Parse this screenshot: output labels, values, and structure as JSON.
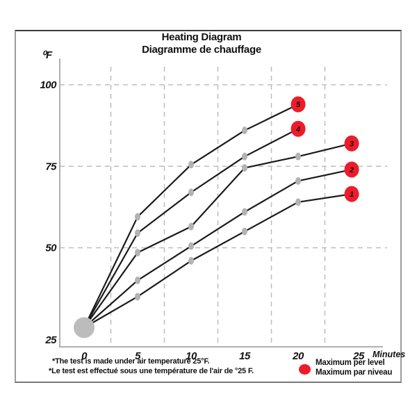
{
  "chart_data": {
    "type": "line",
    "title": "Heating Diagram",
    "subtitle": "Diagramme de chauffage",
    "ylabel": "⁰F",
    "xlabel": "Minutes",
    "x_ticks": [
      "0",
      "5",
      "10",
      "15",
      "20",
      "25"
    ],
    "y_ticks": [
      "25",
      "50",
      "75",
      "100"
    ],
    "xlim": [
      0,
      28
    ],
    "ylim": [
      25,
      108
    ],
    "grid": {
      "style": "dashed",
      "h_lines_at": [
        50,
        75,
        100
      ],
      "v_lines_at": [
        2.5,
        7.5,
        12.5,
        17.5,
        22.5
      ]
    },
    "origin_point": {
      "x": 0,
      "y": 25.5,
      "note": "common start point, large gray dot"
    },
    "series": [
      {
        "name": "1",
        "x": [
          0,
          5,
          10,
          15,
          20,
          25
        ],
        "y": [
          25.5,
          35,
          46,
          55,
          64,
          66.5
        ],
        "max": {
          "x": 25,
          "y": 66.5,
          "label": "1"
        }
      },
      {
        "name": "2",
        "x": [
          0,
          5,
          10,
          15,
          20,
          25
        ],
        "y": [
          25.5,
          40,
          50.5,
          61,
          70.5,
          74
        ],
        "max": {
          "x": 25,
          "y": 74,
          "label": "2"
        }
      },
      {
        "name": "3",
        "x": [
          0,
          5,
          10,
          15,
          20,
          25
        ],
        "y": [
          25.5,
          48.5,
          56.5,
          74.5,
          78,
          82
        ],
        "max": {
          "x": 25,
          "y": 82,
          "label": "3"
        }
      },
      {
        "name": "4",
        "x": [
          0,
          5,
          10,
          15,
          20
        ],
        "y": [
          25.5,
          54.5,
          67,
          78,
          86.5
        ],
        "max": {
          "x": 20,
          "y": 86.5,
          "label": "4"
        }
      },
      {
        "name": "5",
        "x": [
          0,
          5,
          10,
          15,
          20
        ],
        "y": [
          25.5,
          59.5,
          75.5,
          86,
          94
        ],
        "max": {
          "x": 20,
          "y": 94,
          "label": "5"
        }
      }
    ],
    "legend": {
      "position": "bottom-right",
      "labels": [
        "Maximum per level",
        "Maximum par niveau"
      ]
    }
  },
  "footnotes": {
    "line1": "*The test is made under air temperature 25°F.",
    "line2": "*Le test est effectué sous une température de l'air de °25 F."
  },
  "colors": {
    "line": "#1a1a1a",
    "marker_gray": "#b3b3b3",
    "origin_gray": "#bcbcbc",
    "max_red": "#ed1c2a",
    "grid": "#bdbdbd",
    "axis": "#b0b0b0"
  }
}
